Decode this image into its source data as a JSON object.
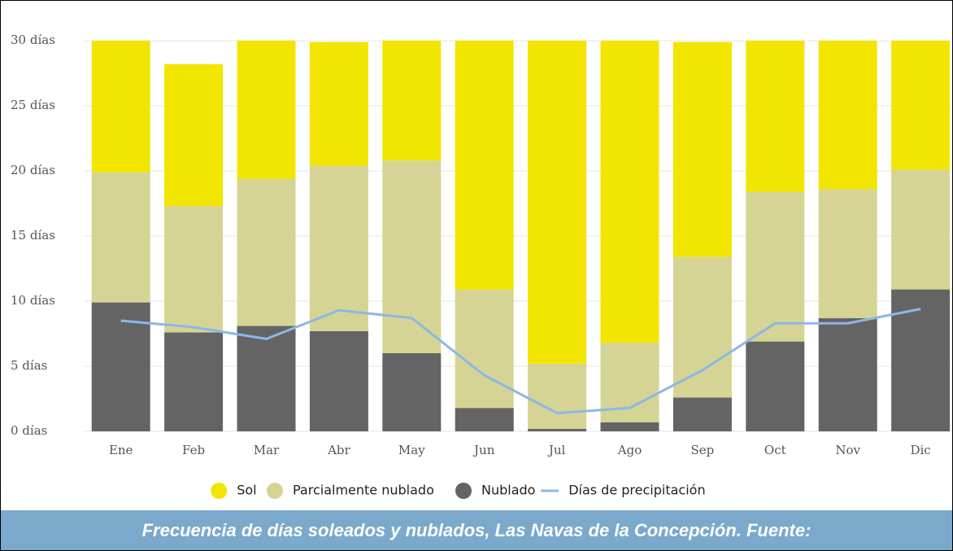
{
  "chart_data": {
    "type": "stacked-bar-line",
    "caption": "Frecuencia de días soleados y nublados, Las Navas de la Concepción. Fuente:",
    "categories": [
      "Ene",
      "Feb",
      "Mar",
      "Abr",
      "May",
      "Jun",
      "Jul",
      "Ago",
      "Sep",
      "Oct",
      "Nov",
      "Dic"
    ],
    "series": [
      {
        "name": "Sol",
        "color": "#f2e600",
        "kind": "bar",
        "values": [
          10.1,
          10.9,
          10.6,
          9.5,
          9.2,
          19.1,
          24.8,
          23.2,
          16.5,
          11.6,
          11.4,
          9.9
        ]
      },
      {
        "name": "Parcialmente nublado",
        "color": "#d6d494",
        "kind": "bar",
        "values": [
          10.0,
          9.7,
          11.3,
          12.7,
          14.8,
          9.1,
          5.0,
          6.1,
          10.8,
          11.5,
          9.9,
          9.2
        ]
      },
      {
        "name": "Nublado",
        "color": "#646464",
        "kind": "bar",
        "values": [
          9.9,
          7.6,
          8.1,
          7.7,
          6.0,
          1.8,
          0.2,
          0.7,
          2.6,
          6.9,
          8.7,
          10.9
        ]
      },
      {
        "name": "Días de precipitación",
        "color": "#8ab8e6",
        "kind": "line",
        "values": [
          8.5,
          8.0,
          7.1,
          9.3,
          8.7,
          4.3,
          1.4,
          1.8,
          4.7,
          8.3,
          8.3,
          9.4
        ]
      }
    ],
    "ylim": [
      0,
      30
    ],
    "yticks": [
      {
        "value": 0,
        "label": "0 días"
      },
      {
        "value": 5,
        "label": "5 días"
      },
      {
        "value": 10,
        "label": "10 días"
      },
      {
        "value": 15,
        "label": "15 días"
      },
      {
        "value": 20,
        "label": "20 días"
      },
      {
        "value": 25,
        "label": "25 días"
      },
      {
        "value": 30,
        "label": "30 días"
      }
    ],
    "grid": true
  }
}
